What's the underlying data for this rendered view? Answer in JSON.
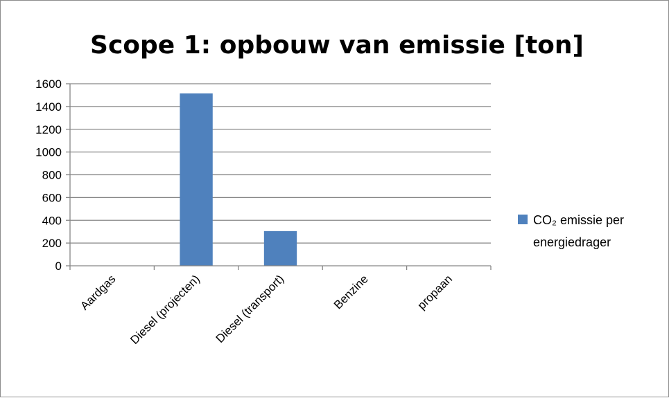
{
  "chart_data": {
    "type": "bar",
    "title": "Scope 1: opbouw van emissie  [ton]",
    "categories": [
      "Aardgas",
      "Diesel (projecten)",
      "Diesel (transport)",
      "Benzine",
      "propaan"
    ],
    "series": [
      {
        "name_line1": "CO₂ emissie per",
        "name_line2": "energiedrager",
        "values": [
          0,
          1515,
          305,
          0,
          0
        ],
        "color": "#4f81bd"
      }
    ],
    "ylim": [
      0,
      1600
    ],
    "yticks": [
      "0",
      "200",
      "400",
      "600",
      "800",
      "1000",
      "1200",
      "1400",
      "1600"
    ],
    "grid": true,
    "legend": "right"
  }
}
